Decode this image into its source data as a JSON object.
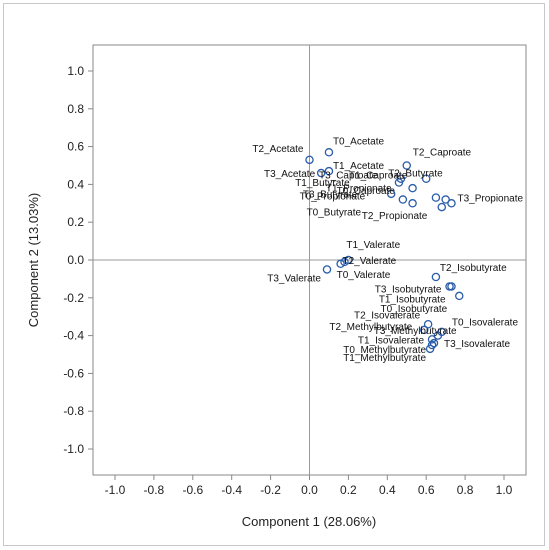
{
  "chart_data": {
    "type": "scatter",
    "title": "",
    "xlabel": "Component 1 (28.06%)",
    "ylabel": "Component 2 (13.03%)",
    "xlim": [
      -1.0,
      1.0
    ],
    "ylim": [
      -1.0,
      1.0
    ],
    "grid": false,
    "reference_lines": [
      0,
      0
    ],
    "x_ticks": [
      "-1.0",
      "-0.8",
      "-0.6",
      "-0.4",
      "-0.2",
      "0.0",
      "0.2",
      "0.4",
      "0.6",
      "0.8",
      "1.0"
    ],
    "y_ticks": [
      "1.0",
      "0.8",
      "0.6",
      "0.4",
      "0.2",
      "0.0",
      "-0.2",
      "-0.4",
      "-0.6",
      "-0.8",
      "-1.0"
    ],
    "marker_color": "#2a5caa",
    "points": [
      {
        "label": "T2_Acetate",
        "x": 0.0,
        "y": 0.53
      },
      {
        "label": "T0_Acetate",
        "x": 0.1,
        "y": 0.57
      },
      {
        "label": "T3_Acetate",
        "x": 0.06,
        "y": 0.46
      },
      {
        "label": "T1_Acetate",
        "x": 0.1,
        "y": 0.47
      },
      {
        "label": "T2_Caproate",
        "x": 0.5,
        "y": 0.5
      },
      {
        "label": "T1_Caproate",
        "x": 0.47,
        "y": 0.43
      },
      {
        "label": "T3_Caproate",
        "x": 0.46,
        "y": 0.41
      },
      {
        "label": "T0_Caproate",
        "x": 0.53,
        "y": 0.38
      },
      {
        "label": "T2_Butyrate",
        "x": 0.6,
        "y": 0.43
      },
      {
        "label": "T1_Butyrate",
        "x": 0.42,
        "y": 0.35
      },
      {
        "label": "T3_Butyrate",
        "x": 0.48,
        "y": 0.32
      },
      {
        "label": "T0_Butyrate",
        "x": 0.53,
        "y": 0.3
      },
      {
        "label": "T1_Propionate",
        "x": 0.65,
        "y": 0.33
      },
      {
        "label": "T0_Propionate",
        "x": 0.7,
        "y": 0.32
      },
      {
        "label": "T3_Propionate",
        "x": 0.73,
        "y": 0.3
      },
      {
        "label": "T2_Propionate",
        "x": 0.68,
        "y": 0.28
      },
      {
        "label": "T1_Valerate",
        "x": 0.2,
        "y": 0.0
      },
      {
        "label": "T2_Valerate",
        "x": 0.18,
        "y": -0.01
      },
      {
        "label": "T0_Valerate",
        "x": 0.16,
        "y": -0.02
      },
      {
        "label": "T3_Valerate",
        "x": 0.09,
        "y": -0.05
      },
      {
        "label": "T2_Isobutyrate",
        "x": 0.65,
        "y": -0.09
      },
      {
        "label": "T3_Isobutyrate",
        "x": 0.73,
        "y": -0.14
      },
      {
        "label": "T1_Isobutyrate",
        "x": 0.72,
        "y": -0.14
      },
      {
        "label": "T0_Isobutyrate",
        "x": 0.77,
        "y": -0.19
      },
      {
        "label": "T2_Isovalerate",
        "x": 0.61,
        "y": -0.34
      },
      {
        "label": "T3_Methylbutyrate",
        "x": 0.68,
        "y": -0.38
      },
      {
        "label": "T0_Isovalerate",
        "x": 0.66,
        "y": -0.4
      },
      {
        "label": "T2_Methylbutyrate",
        "x": 0.59,
        "y": -0.37
      },
      {
        "label": "T1_Isovalerate",
        "x": 0.63,
        "y": -0.42
      },
      {
        "label": "T3_Isovalerate",
        "x": 0.64,
        "y": -0.44
      },
      {
        "label": "T0_Methylbutyrate",
        "x": 0.62,
        "y": -0.47
      },
      {
        "label": "T1_Methylbutyrate",
        "x": 0.63,
        "y": -0.45
      }
    ]
  }
}
